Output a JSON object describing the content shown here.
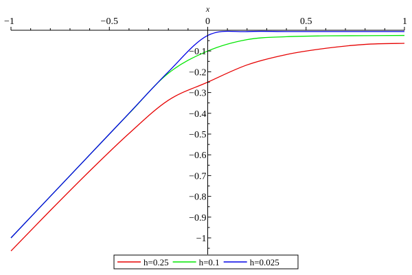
{
  "chart_data": {
    "type": "line",
    "xlabel": "x",
    "ylabel": "",
    "xlim": [
      -1,
      1
    ],
    "ylim": [
      -1.08,
      0
    ],
    "x_ticks": [
      {
        "value": -1,
        "label": "−1"
      },
      {
        "value": -0.5,
        "label": "−0.5"
      },
      {
        "value": 0,
        "label": "0"
      },
      {
        "value": 0.5,
        "label": "0.5"
      },
      {
        "value": 1,
        "label": "1"
      }
    ],
    "y_ticks": [
      {
        "value": -0.1,
        "label": "−0.1"
      },
      {
        "value": -0.2,
        "label": "−0.2"
      },
      {
        "value": -0.3,
        "label": "−0.3"
      },
      {
        "value": -0.4,
        "label": "−0.4"
      },
      {
        "value": -0.5,
        "label": "−0.5"
      },
      {
        "value": -0.6,
        "label": "−0.6"
      },
      {
        "value": -0.7,
        "label": "−0.7"
      },
      {
        "value": -0.8,
        "label": "−0.8"
      },
      {
        "value": -0.9,
        "label": "−0.9"
      },
      {
        "value": -1,
        "label": "−1"
      }
    ],
    "grid": false,
    "legend_position": "bottom",
    "series": [
      {
        "name": "h=0.25",
        "color": "#e60000",
        "h": 0.25,
        "x": [
          -1,
          -0.8,
          -0.6,
          -0.4,
          -0.2,
          0,
          0.2,
          0.4,
          0.6,
          0.8,
          1
        ],
        "y": [
          -1.063,
          -0.868,
          -0.678,
          -0.497,
          -0.337,
          -0.25,
          -0.167,
          -0.117,
          -0.087,
          -0.068,
          -0.063
        ]
      },
      {
        "name": "h=0.1",
        "color": "#00e600",
        "h": 0.1,
        "x": [
          -1,
          -0.8,
          -0.6,
          -0.4,
          -0.2,
          0,
          0.2,
          0.4,
          0.6,
          0.8,
          1
        ],
        "y": [
          -1.0,
          -0.8,
          -0.6,
          -0.401,
          -0.207,
          -0.1,
          -0.045,
          -0.031,
          -0.027,
          -0.026,
          -0.025
        ]
      },
      {
        "name": "h=0.025",
        "color": "#0000e6",
        "h": 0.025,
        "x": [
          -1,
          -0.8,
          -0.6,
          -0.4,
          -0.2,
          0,
          0.2,
          0.4,
          0.6,
          0.8,
          1
        ],
        "y": [
          -1.0,
          -0.8,
          -0.6,
          -0.4,
          -0.2,
          -0.025,
          -0.0064,
          -0.0063,
          -0.0063,
          -0.0063,
          -0.0063
        ]
      }
    ]
  }
}
